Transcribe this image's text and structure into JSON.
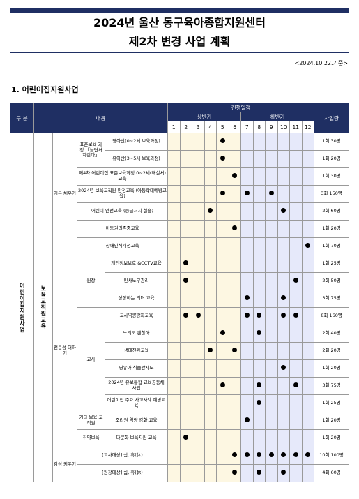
{
  "header": {
    "title": "2024년 울산 동구육아종합지원센터",
    "subtitle": "제2차 변경 사업 계획",
    "date": "<2024.10.22.기준>",
    "section": "1. 어린이집지원사업"
  },
  "table": {
    "columns": {
      "category": "구 분",
      "content": "내용",
      "schedule": "진행일정",
      "first_half": "상반기",
      "second_half": "하반기",
      "months": [
        1,
        2,
        3,
        4,
        5,
        6,
        7,
        8,
        9,
        10,
        11,
        12
      ],
      "amount": "사업량"
    },
    "program": "어린이집지원사업",
    "course": "보육교직원교육",
    "groups": [
      {
        "label": "기본 채우기",
        "subgroups": [
          {
            "label": "표준보육 과정 「놀면서 자란다」",
            "items": [
              {
                "content": "영아반(0~2세 보육과정)",
                "months": [
                  5
                ],
                "amount": "1회 30명"
              },
              {
                "content": "유아반(3~5세 보육과정)",
                "months": [
                  5
                ],
                "amount": "1회 20명"
              }
            ]
          },
          {
            "items": [
              {
                "content": "제4차 어린이집 표준보육과정 0~2세(해설서) 교육",
                "months": [
                  6
                ],
                "amount": "1회 30명"
              },
              {
                "content": "2024년 보육교직원 안전교육 (아동학대예방교육)",
                "months": [
                  5,
                  7,
                  9
                ],
                "amount": "3회 150명"
              },
              {
                "content": "어린이 안전교육 (응급처치 실습)",
                "months": [
                  4,
                  10
                ],
                "amount": "2회 60명"
              },
              {
                "content": "아동권리존중교육",
                "months": [
                  6
                ],
                "amount": "1회 20명"
              },
              {
                "content": "장애인식개선교육",
                "months": [
                  12
                ],
                "amount": "1회 70명"
              }
            ]
          }
        ]
      },
      {
        "label": "전문성 더하기",
        "subgroups": [
          {
            "label": "원장",
            "items": [
              {
                "content": "개인정보보호 &CCTV교육",
                "months": [
                  2
                ],
                "amount": "1회 25명"
              },
              {
                "content": "인사노무관리",
                "months": [
                  2,
                  11
                ],
                "amount": "2회 50명"
              },
              {
                "content": "성장하는 리더 교육",
                "months": [
                  7,
                  10
                ],
                "amount": "3회 75명"
              }
            ]
          },
          {
            "label": "교사",
            "items": [
              {
                "content": "교사역량강화교육",
                "months": [
                  2,
                  3,
                  7,
                  8,
                  10,
                  11
                ],
                "amount": "8회 160명"
              },
              {
                "content": "느려도 괜찮아",
                "months": [
                  5,
                  8
                ],
                "amount": "2회 40명"
              },
              {
                "content": "생태전환교육",
                "months": [
                  4,
                  6
                ],
                "amount": "2회 20명"
              },
              {
                "content": "영유아 식습관지도",
                "months": [
                  10
                ],
                "amount": "1회 20명"
              },
              {
                "content": "2024년 유보통합 교육공동체 사업",
                "months": [
                  5,
                  8,
                  11
                ],
                "amount": "3회 75명"
              },
              {
                "content": "어린이집 주요 사고사례 예방교육",
                "months": [
                  8
                ],
                "amount": "1회 25명"
              }
            ]
          },
          {
            "label": "기타 보육 교직원",
            "items": [
              {
                "content": "조리원 역량 강화 교육",
                "months": [
                  7
                ],
                "amount": "1회 20명"
              }
            ]
          },
          {
            "label": "취약보육",
            "items": [
              {
                "content": "다문화 보육지원 교육",
                "months": [
                  2
                ],
                "amount": "1회 20명"
              }
            ]
          }
        ]
      },
      {
        "label": "감성 키우기",
        "subgroups": [
          {
            "items": [
              {
                "content": "[교사대상] 쉼, 휴(休)",
                "months": [
                  6,
                  7,
                  8,
                  9,
                  10,
                  11,
                  12
                ],
                "amount": "10회 100명"
              },
              {
                "content": "[원장대상] 쉼, 휴(休)",
                "months": [
                  6,
                  8,
                  10
                ],
                "amount": "4회 60명"
              }
            ]
          }
        ]
      }
    ]
  }
}
